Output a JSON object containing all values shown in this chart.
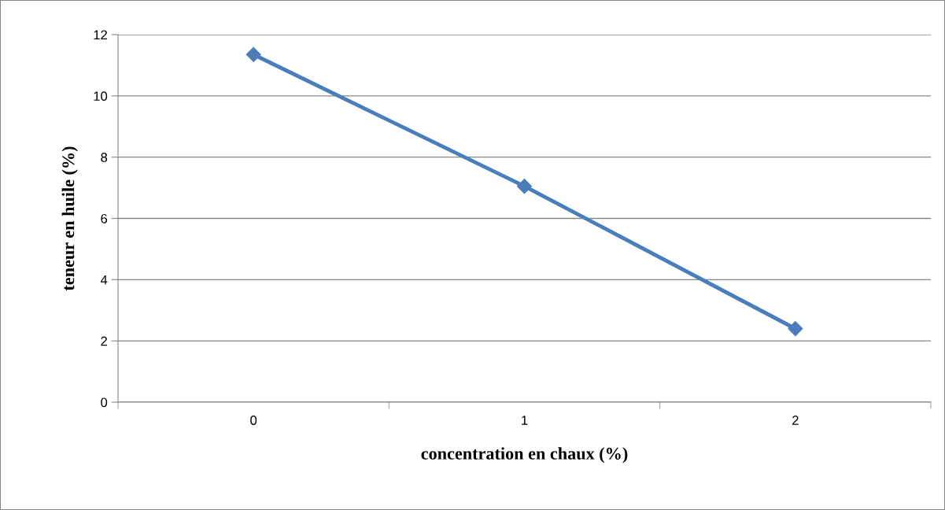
{
  "chart_data": {
    "type": "line",
    "xlabel": "concentration en chaux (%)",
    "ylabel": "teneur en huile (%)",
    "categories": [
      "0",
      "1",
      "2"
    ],
    "series": [
      {
        "color": "#4a7ebb",
        "values": [
          11.35,
          7.05,
          2.4
        ]
      }
    ],
    "ylim": [
      0,
      12
    ],
    "yticks": [
      0,
      2,
      4,
      6,
      8,
      10,
      12
    ],
    "grid": "y",
    "marker": "diamond",
    "line_style": "solid",
    "legend": false
  }
}
